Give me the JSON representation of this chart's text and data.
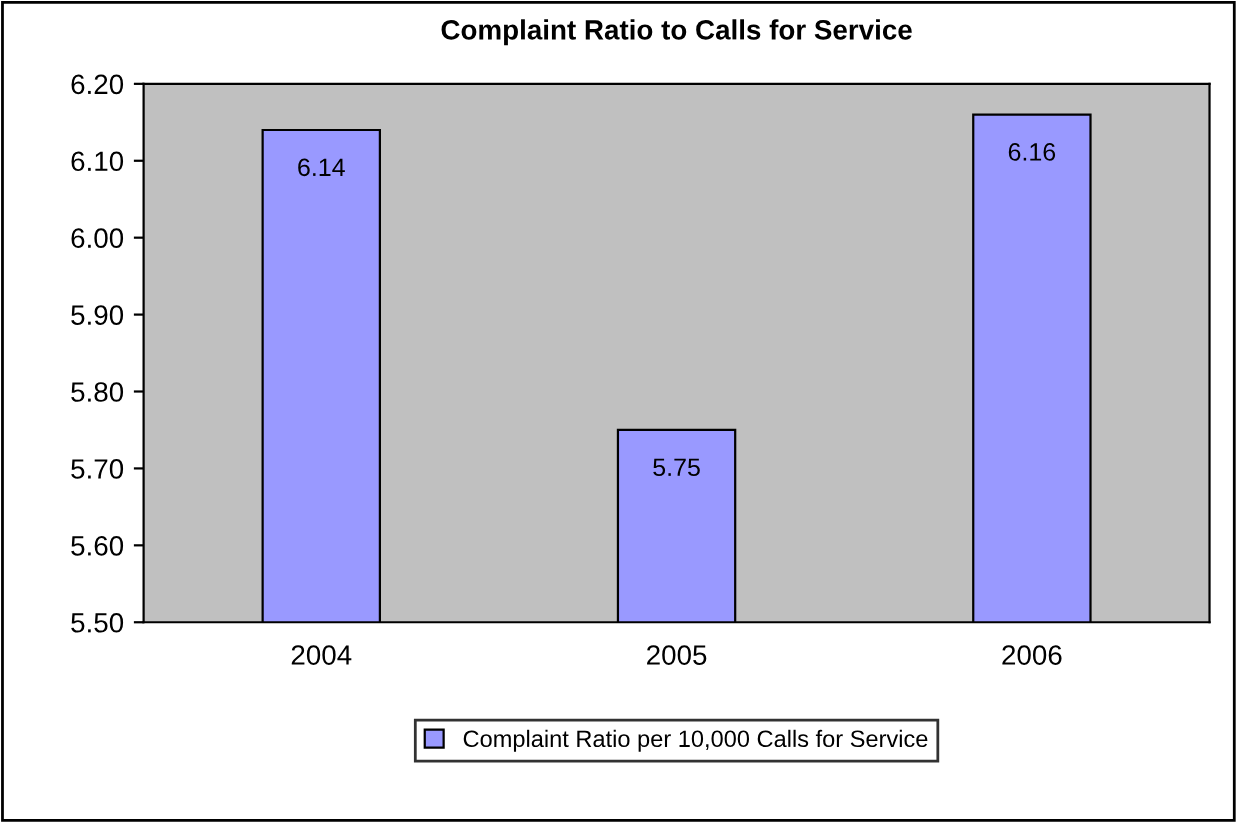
{
  "chart_data": {
    "type": "bar",
    "title": "Complaint Ratio to Calls for Service",
    "categories": [
      "2004",
      "2005",
      "2006"
    ],
    "series": [
      {
        "name": "Complaint Ratio per 10,000 Calls for Service",
        "color": "#9999ff",
        "values": [
          6.14,
          5.75,
          6.16
        ]
      }
    ],
    "ylim": [
      5.5,
      6.2
    ],
    "yticks": [
      {
        "value": 5.5,
        "label": "5.50"
      },
      {
        "value": 5.6,
        "label": "5.60"
      },
      {
        "value": 5.7,
        "label": "5.70"
      },
      {
        "value": 5.8,
        "label": "5.80"
      },
      {
        "value": 5.9,
        "label": "5.90"
      },
      {
        "value": 6.0,
        "label": "6.00"
      },
      {
        "value": 6.1,
        "label": "6.10"
      },
      {
        "value": 6.2,
        "label": "6.20"
      }
    ],
    "data_labels": true,
    "grid": false,
    "legend": "bottom"
  }
}
